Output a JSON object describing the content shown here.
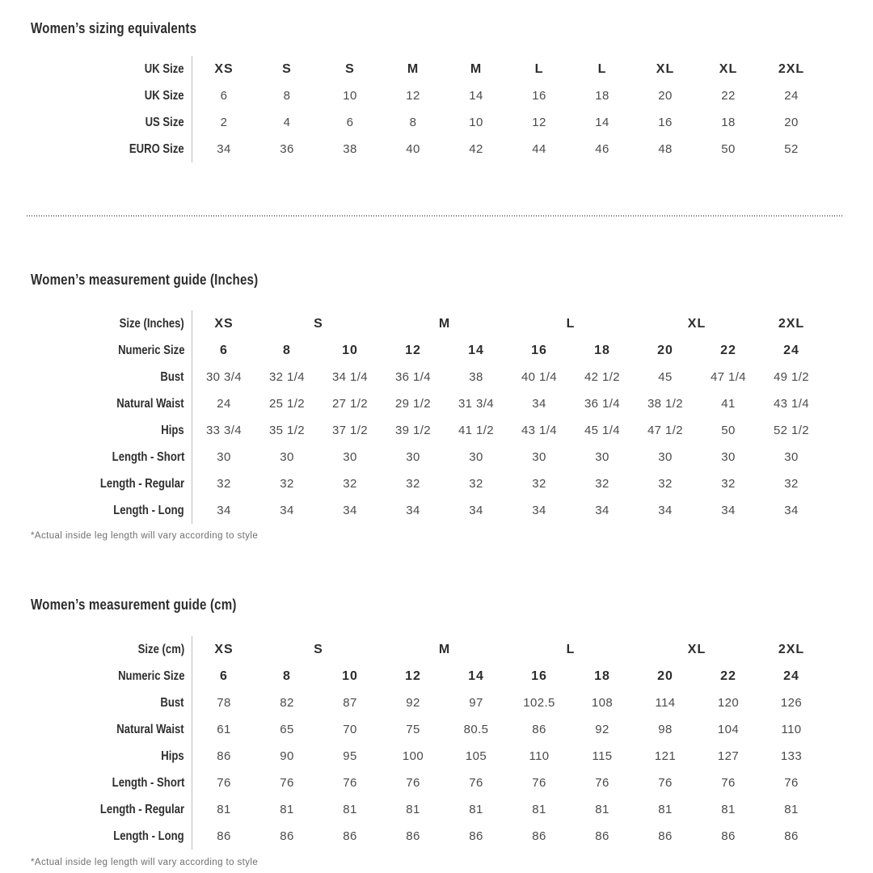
{
  "tables": [
    {
      "title": "Women’s sizing equivalents",
      "rows": [
        {
          "label": "UK Size",
          "bold": true,
          "values": [
            "XS",
            "S",
            "S",
            "M",
            "M",
            "L",
            "L",
            "XL",
            "XL",
            "2XL"
          ]
        },
        {
          "label": "UK Size",
          "bold": false,
          "values": [
            "6",
            "8",
            "10",
            "12",
            "14",
            "16",
            "18",
            "20",
            "22",
            "24"
          ]
        },
        {
          "label": "US Size",
          "bold": false,
          "values": [
            "2",
            "4",
            "6",
            "8",
            "10",
            "12",
            "14",
            "16",
            "18",
            "20"
          ]
        },
        {
          "label": "EURO Size",
          "bold": false,
          "values": [
            "34",
            "36",
            "38",
            "40",
            "42",
            "44",
            "46",
            "48",
            "50",
            "52"
          ]
        }
      ]
    },
    {
      "title": "Women’s measurement guide (Inches)",
      "size_label": "Size (Inches)",
      "size_groups": [
        {
          "label": "XS",
          "span": 1
        },
        {
          "label": "S",
          "span": 2
        },
        {
          "label": "M",
          "span": 2
        },
        {
          "label": "L",
          "span": 2
        },
        {
          "label": "XL",
          "span": 2
        },
        {
          "label": "2XL",
          "span": 1
        }
      ],
      "rows": [
        {
          "label": "Numeric Size",
          "bold": true,
          "values": [
            "6",
            "8",
            "10",
            "12",
            "14",
            "16",
            "18",
            "20",
            "22",
            "24"
          ]
        },
        {
          "label": "Bust",
          "bold": false,
          "values": [
            "30 3/4",
            "32 1/4",
            "34 1/4",
            "36 1/4",
            "38",
            "40 1/4",
            "42 1/2",
            "45",
            "47 1/4",
            "49 1/2"
          ]
        },
        {
          "label": "Natural Waist",
          "bold": false,
          "values": [
            "24",
            "25 1/2",
            "27 1/2",
            "29 1/2",
            "31 3/4",
            "34",
            "36 1/4",
            "38 1/2",
            "41",
            "43 1/4"
          ]
        },
        {
          "label": "Hips",
          "bold": false,
          "values": [
            "33 3/4",
            "35 1/2",
            "37 1/2",
            "39 1/2",
            "41 1/2",
            "43 1/4",
            "45 1/4",
            "47 1/2",
            "50",
            "52 1/2"
          ]
        },
        {
          "label": "Length - Short",
          "bold": false,
          "values": [
            "30",
            "30",
            "30",
            "30",
            "30",
            "30",
            "30",
            "30",
            "30",
            "30"
          ]
        },
        {
          "label": "Length - Regular",
          "bold": false,
          "values": [
            "32",
            "32",
            "32",
            "32",
            "32",
            "32",
            "32",
            "32",
            "32",
            "32"
          ]
        },
        {
          "label": "Length - Long",
          "bold": false,
          "values": [
            "34",
            "34",
            "34",
            "34",
            "34",
            "34",
            "34",
            "34",
            "34",
            "34"
          ]
        }
      ],
      "footnote": "*Actual inside leg length will vary according to style"
    },
    {
      "title": "Women’s measurement guide (cm)",
      "size_label": "Size (cm)",
      "size_groups": [
        {
          "label": "XS",
          "span": 1
        },
        {
          "label": "S",
          "span": 2
        },
        {
          "label": "M",
          "span": 2
        },
        {
          "label": "L",
          "span": 2
        },
        {
          "label": "XL",
          "span": 2
        },
        {
          "label": "2XL",
          "span": 1
        }
      ],
      "rows": [
        {
          "label": "Numeric Size",
          "bold": true,
          "values": [
            "6",
            "8",
            "10",
            "12",
            "14",
            "16",
            "18",
            "20",
            "22",
            "24"
          ]
        },
        {
          "label": "Bust",
          "bold": false,
          "values": [
            "78",
            "82",
            "87",
            "92",
            "97",
            "102.5",
            "108",
            "114",
            "120",
            "126"
          ]
        },
        {
          "label": "Natural Waist",
          "bold": false,
          "values": [
            "61",
            "65",
            "70",
            "75",
            "80.5",
            "86",
            "92",
            "98",
            "104",
            "110"
          ]
        },
        {
          "label": "Hips",
          "bold": false,
          "values": [
            "86",
            "90",
            "95",
            "100",
            "105",
            "110",
            "115",
            "121",
            "127",
            "133"
          ]
        },
        {
          "label": "Length - Short",
          "bold": false,
          "values": [
            "76",
            "76",
            "76",
            "76",
            "76",
            "76",
            "76",
            "76",
            "76",
            "76"
          ]
        },
        {
          "label": "Length - Regular",
          "bold": false,
          "values": [
            "81",
            "81",
            "81",
            "81",
            "81",
            "81",
            "81",
            "81",
            "81",
            "81"
          ]
        },
        {
          "label": "Length - Long",
          "bold": false,
          "values": [
            "86",
            "86",
            "86",
            "86",
            "86",
            "86",
            "86",
            "86",
            "86",
            "86"
          ]
        }
      ],
      "footnote": "*Actual inside leg length will vary according to style"
    }
  ]
}
